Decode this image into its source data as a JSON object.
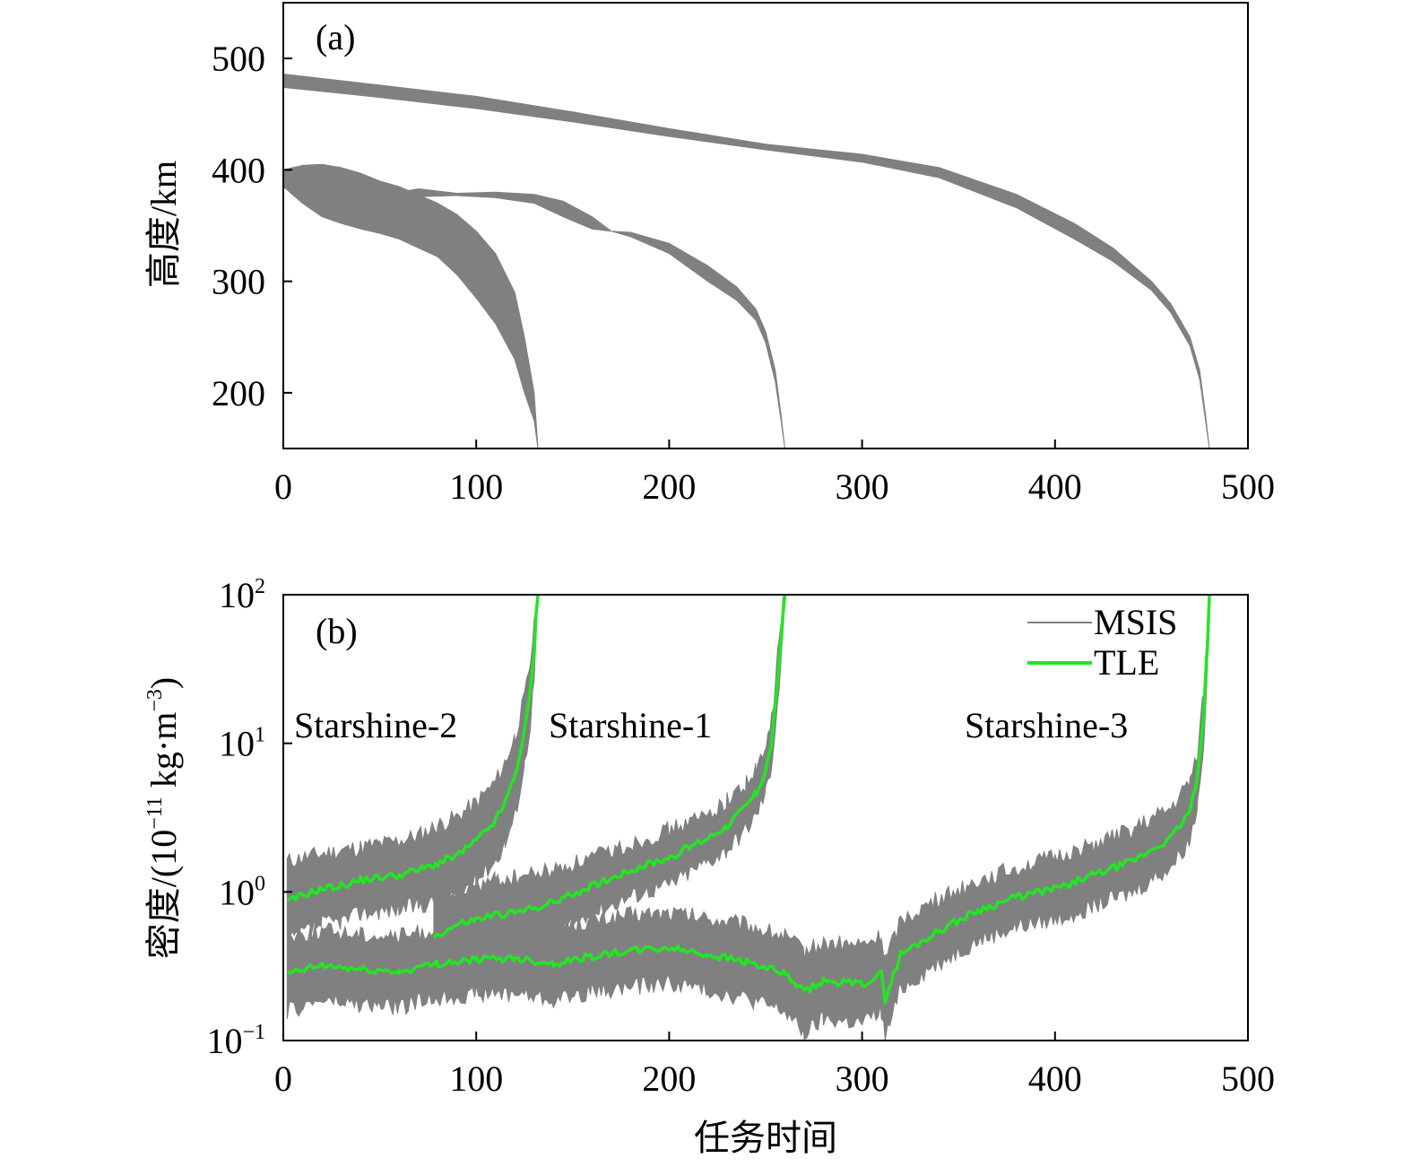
{
  "chart_data": [
    {
      "panel": "(a)",
      "type": "area",
      "ylabel": "高度/km",
      "xlim": [
        0,
        500
      ],
      "ylim": [
        150,
        550
      ],
      "xticks": [
        "0",
        "100",
        "200",
        "300",
        "400",
        "500"
      ],
      "yticks": [
        "200",
        "300",
        "400",
        "500"
      ],
      "ytick_values": [
        200,
        300,
        400,
        500
      ],
      "band_color": "#808080",
      "series": [
        {
          "x": [
            0,
            10,
            20,
            30,
            40,
            50,
            60,
            80,
            90,
            100,
            110,
            120,
            125,
            130,
            132
          ],
          "upper": [
            400,
            404,
            405,
            402,
            397,
            390,
            385,
            370,
            360,
            345,
            325,
            290,
            250,
            200,
            150
          ],
          "lower": [
            385,
            370,
            358,
            352,
            347,
            343,
            338,
            322,
            306,
            285,
            262,
            230,
            200,
            175,
            150
          ]
        },
        {
          "x": [
            45,
            60,
            70,
            90,
            110,
            130,
            145,
            160,
            170,
            180,
            200,
            220,
            235,
            245,
            250,
            255,
            258,
            260
          ],
          "upper": [
            378,
            380,
            383,
            379,
            380,
            378,
            372,
            358,
            345,
            344,
            334,
            314,
            295,
            275,
            255,
            220,
            180,
            150
          ],
          "lower": [
            374,
            375,
            376,
            377,
            375,
            370,
            358,
            347,
            345,
            340,
            325,
            300,
            283,
            265,
            245,
            210,
            175,
            150
          ]
        },
        {
          "x": [
            0,
            50,
            100,
            150,
            200,
            250,
            300,
            340,
            380,
            410,
            430,
            450,
            460,
            470,
            475,
            478,
            480
          ],
          "upper": [
            486,
            476,
            466,
            452,
            437,
            423,
            414,
            402,
            378,
            352,
            330,
            300,
            280,
            250,
            220,
            180,
            150
          ],
          "lower": [
            474,
            465,
            455,
            443,
            430,
            418,
            407,
            393,
            366,
            338,
            318,
            292,
            272,
            242,
            212,
            175,
            150
          ]
        }
      ]
    },
    {
      "panel": "(b)",
      "type": "line",
      "xlabel": "任务时间",
      "ylabel_prefix": "密度/(10",
      "ylabel_exp1": "−11",
      "ylabel_mid": " kg·m",
      "ylabel_exp2": "−3",
      "ylabel_suffix": ")",
      "yscale": "log",
      "xlim": [
        0,
        500
      ],
      "ylim": [
        0.1,
        100
      ],
      "xticks": [
        "0",
        "100",
        "200",
        "300",
        "400",
        "500"
      ],
      "ytick_base": "10",
      "ytick_exps": [
        "−1",
        "0",
        "1",
        "2"
      ],
      "ytick_values": [
        0.1,
        1,
        10,
        100
      ],
      "legend": {
        "position": "top-right",
        "entries": [
          "MSIS",
          "TLE"
        ]
      },
      "series_labels": [
        "Starshine-2",
        "Starshine-1",
        "Starshine-3"
      ],
      "colors": {
        "MSIS": "#808080",
        "TLE": "#22e622"
      },
      "series": [
        {
          "name": "Starshine-2",
          "x": [
            2,
            10,
            20,
            30,
            40,
            50,
            60,
            70,
            80,
            90,
            100,
            110,
            115,
            120,
            125,
            128,
            130,
            131,
            132
          ],
          "tle": [
            0.85,
            0.95,
            1.05,
            1.1,
            1.2,
            1.25,
            1.3,
            1.4,
            1.55,
            1.75,
            2.2,
            3.0,
            4.0,
            6.0,
            12.0,
            22.0,
            40.0,
            70.0,
            100
          ],
          "msis_band": [
            1.6,
            1.7,
            1.8,
            1.9,
            2.0,
            2.1,
            2.2,
            2.4,
            2.8,
            3.2,
            4.0,
            5.5,
            7.5,
            11.0,
            20.0,
            35.0,
            60.0,
            90.0,
            100
          ]
        },
        {
          "name": "Starshine-1",
          "x": [
            78,
            90,
            100,
            110,
            120,
            140,
            160,
            180,
            200,
            220,
            230,
            240,
            245,
            250,
            253,
            255,
            257,
            259,
            260
          ],
          "tle": [
            0.5,
            0.6,
            0.65,
            0.7,
            0.72,
            0.85,
            1.1,
            1.4,
            1.7,
            2.3,
            2.8,
            3.8,
            4.6,
            6.5,
            10.0,
            18.0,
            35.0,
            70.0,
            100
          ],
          "msis_band": [
            0.9,
            1.0,
            1.1,
            1.2,
            1.25,
            1.4,
            1.7,
            2.1,
            2.6,
            3.3,
            4.1,
            5.4,
            6.5,
            9.0,
            14.0,
            25.0,
            50.0,
            90.0,
            100
          ]
        },
        {
          "name": "Starshine-3",
          "x": [
            2,
            20,
            40,
            60,
            80,
            100,
            120,
            140,
            160,
            180,
            200,
            220,
            240,
            260,
            270,
            280,
            300,
            310,
            312,
            320,
            340,
            360,
            380,
            400,
            420,
            440,
            460,
            470,
            474,
            477,
            479,
            480
          ],
          "tle": [
            0.28,
            0.32,
            0.3,
            0.29,
            0.33,
            0.35,
            0.36,
            0.33,
            0.37,
            0.4,
            0.42,
            0.38,
            0.34,
            0.28,
            0.21,
            0.25,
            0.24,
            0.28,
            0.19,
            0.38,
            0.55,
            0.75,
            0.92,
            1.05,
            1.3,
            1.6,
            2.3,
            3.5,
            6.0,
            15.0,
            45.0,
            100
          ],
          "msis_band": [
            0.5,
            0.55,
            0.52,
            0.5,
            0.56,
            0.6,
            0.62,
            0.58,
            0.64,
            0.7,
            0.72,
            0.66,
            0.6,
            0.5,
            0.4,
            0.45,
            0.44,
            0.5,
            0.35,
            0.65,
            0.9,
            1.2,
            1.45,
            1.7,
            2.1,
            2.6,
            3.6,
            5.5,
            9.0,
            22.0,
            60.0,
            100
          ]
        }
      ]
    }
  ]
}
